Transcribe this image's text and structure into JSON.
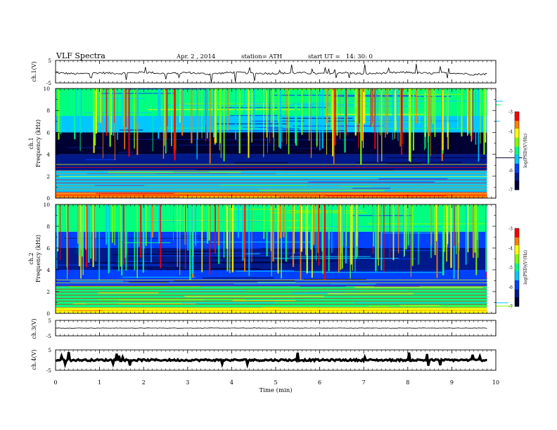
{
  "header": {
    "title": "VLF Spectra",
    "date": "Apr. 2 , 2014",
    "station": "station= ATH",
    "start": "start UT =   14: 30: 0"
  },
  "colors": {
    "colormap": [
      "#000033",
      "#001a8c",
      "#0040ff",
      "#00c8ff",
      "#00ff80",
      "#80ff00",
      "#ffff00",
      "#ff8000",
      "#ff0000",
      "#ffffff"
    ],
    "trace": "#000000"
  },
  "chart_data": [
    {
      "type": "line",
      "name": "ch1-waveform",
      "ylabel": "ch.1(V)",
      "ylim": [
        -5,
        5
      ],
      "yticks": [
        "5",
        "-5"
      ],
      "x": [
        0,
        0.5,
        1,
        1.5,
        2,
        2.5,
        3,
        3.5,
        4,
        4.5,
        5,
        5.5,
        6,
        6.5,
        7,
        7.5,
        8,
        8.5,
        9,
        9.5,
        9.8
      ],
      "y": [
        -0.5,
        -1.0,
        -0.5,
        -0.8,
        -0.2,
        -0.9,
        -0.4,
        -1.1,
        -0.3,
        -0.7,
        -0.8,
        -0.5,
        -0.9,
        -0.4,
        -1.0,
        -0.6,
        -0.3,
        -0.8,
        -0.5,
        -1.2,
        -1.0
      ]
    },
    {
      "type": "heatmap",
      "name": "ch1-spectrogram",
      "ylabel": "Frequency (kHz)",
      "channel_label": "ch.1",
      "ylim": [
        0,
        10
      ],
      "yticks": [
        "10",
        "8",
        "6",
        "4",
        "2",
        "0"
      ],
      "x_range": [
        0,
        9.8
      ],
      "colorbar": {
        "label": "log(PSD)(V²/Hz)",
        "range": [
          -7,
          -3
        ],
        "ticks": [
          "-3",
          "-4",
          "-5",
          "-6",
          "-7"
        ]
      },
      "bands_kHz": [
        {
          "from": 0,
          "to": 0.5,
          "level": -3.5
        },
        {
          "from": 0.5,
          "to": 2.5,
          "level": -5.3
        },
        {
          "from": 2.5,
          "to": 4,
          "level": -6.2
        },
        {
          "from": 4,
          "to": 6,
          "level": -6.9
        },
        {
          "from": 6,
          "to": 7.5,
          "level": -5.6
        },
        {
          "from": 7.5,
          "to": 10,
          "level": -5.0
        }
      ]
    },
    {
      "type": "heatmap",
      "name": "ch2-spectrogram",
      "ylabel": "Frequency (kHz)",
      "channel_label": "ch.2",
      "ylim": [
        0,
        10
      ],
      "yticks": [
        "10",
        "8",
        "6",
        "4",
        "2",
        "0"
      ],
      "x_range": [
        0,
        9.8
      ],
      "colorbar": {
        "label": "log(PSD)(V²/Hz)",
        "range": [
          -7,
          -3
        ],
        "ticks": [
          "-3",
          "-4",
          "-5",
          "-6",
          "-7"
        ]
      },
      "bands_kHz": [
        {
          "from": 0,
          "to": 0.5,
          "level": -4.2
        },
        {
          "from": 0.5,
          "to": 2.5,
          "level": -4.8
        },
        {
          "from": 2.5,
          "to": 4,
          "level": -6.1
        },
        {
          "from": 4,
          "to": 5,
          "level": -6.5
        },
        {
          "from": 5,
          "to": 6,
          "level": -6.3
        },
        {
          "from": 6,
          "to": 7.5,
          "level": -5.8
        },
        {
          "from": 7.5,
          "to": 10,
          "level": -5.0
        }
      ]
    },
    {
      "type": "line",
      "name": "ch3-waveform",
      "ylabel": "ch.3(V)",
      "ylim": [
        -5,
        5
      ],
      "yticks": [
        "5",
        "-5"
      ],
      "x": [
        0,
        9.8
      ],
      "y": [
        0.0,
        0.0
      ]
    },
    {
      "type": "line",
      "name": "ch4-waveform",
      "ylabel": "ch.4(V)",
      "ylim": [
        -5,
        5
      ],
      "yticks": [
        "5",
        "-5"
      ],
      "x": [
        0,
        9.8
      ],
      "y": [
        0.0,
        0.0
      ]
    }
  ],
  "x_axis": {
    "label": "Time (min)",
    "range": [
      0,
      10
    ],
    "ticks": [
      "0",
      "1",
      "2",
      "3",
      "4",
      "5",
      "6",
      "7",
      "8",
      "9",
      "10"
    ]
  }
}
